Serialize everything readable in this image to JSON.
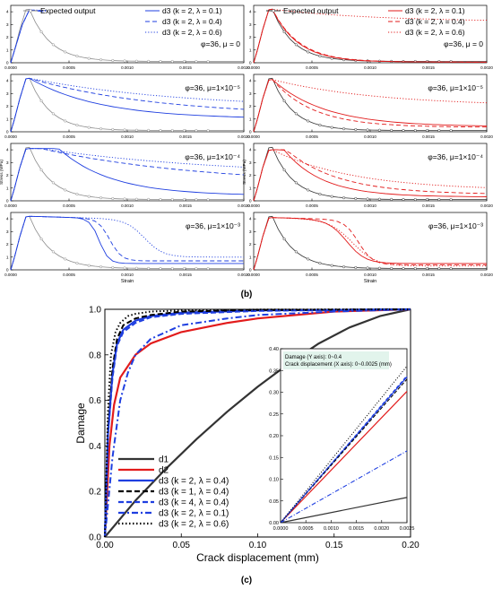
{
  "colors": {
    "blue": "#1f3fe0",
    "red": "#e21b1b",
    "gray": "#8c8c8c",
    "black": "#000000",
    "dark": "#333333",
    "inset_box": "#e2f4ec"
  },
  "captions": {
    "b": "(b)",
    "c": "(c)"
  },
  "chart_data": [
    {
      "type": "line",
      "panel": "b-left-1",
      "subtitle": "φ=36, μ = 0",
      "xlim": [
        0,
        0.002
      ],
      "ylim": [
        0,
        4.5
      ],
      "x_ticks": [
        "0.0000",
        "0.0005",
        "0.0010",
        "0.0015",
        "0.0020"
      ],
      "y_ticks": [
        "0",
        "1",
        "2",
        "3",
        "4"
      ],
      "legend": [
        "Expected output",
        "d3 (k = 2, λ = 0.1)",
        "d3 (k = 2, λ = 0.4)",
        "d3 (k = 2, λ = 0.6)"
      ]
    },
    {
      "type": "line",
      "panel": "b-right-1",
      "subtitle": "φ=36, μ = 0",
      "xlim": [
        0,
        0.002
      ],
      "ylim": [
        0,
        4.5
      ],
      "x_ticks": [
        "0.0000",
        "0.0005",
        "0.0010",
        "0.0015",
        "0.0020"
      ],
      "y_ticks": [
        "0",
        "1",
        "2",
        "3",
        "4"
      ],
      "legend": [
        "Expected output",
        "d3 (k = 2, λ = 0.1)",
        "d3 (k = 2, λ = 0.4)",
        "d3 (k = 2, λ = 0.6)"
      ]
    },
    {
      "type": "line",
      "panel": "b-left-2",
      "subtitle": "φ=36, μ=1×10⁻⁵",
      "ylabel": "",
      "xlim": [
        0,
        0.002
      ],
      "ylim": [
        0,
        4.5
      ],
      "x_ticks": [
        "0.0000",
        "0.0005",
        "0.0010",
        "0.0015",
        "0.0020"
      ],
      "y_ticks": [
        "0",
        "1",
        "2",
        "3",
        "4"
      ]
    },
    {
      "type": "line",
      "panel": "b-right-2",
      "subtitle": "φ=36, μ=1×10⁻⁵",
      "xlim": [
        0,
        0.002
      ],
      "ylim": [
        0,
        4.5
      ],
      "x_ticks": [
        "0.0000",
        "0.0005",
        "0.0010",
        "0.0015",
        "0.0020"
      ],
      "y_ticks": [
        "0",
        "1",
        "2",
        "3",
        "4"
      ]
    },
    {
      "type": "line",
      "panel": "b-left-3",
      "subtitle": "φ=36, μ=1×10⁻⁴",
      "ylabel": "Stress (MPa)",
      "xlim": [
        0,
        0.002
      ],
      "ylim": [
        0,
        4.5
      ],
      "x_ticks": [
        "0.0000",
        "0.0005",
        "0.0010",
        "0.0015",
        "0.0020"
      ],
      "y_ticks": [
        "0",
        "1",
        "2",
        "3",
        "4"
      ]
    },
    {
      "type": "line",
      "panel": "b-right-3",
      "subtitle": "φ=36, μ=1×10⁻⁴",
      "ylabel": "Stress (MPa)",
      "xlim": [
        0,
        0.002
      ],
      "ylim": [
        0,
        4.5
      ],
      "x_ticks": [
        "0.0000",
        "0.0005",
        "0.0010",
        "0.0015",
        "0.0020"
      ],
      "y_ticks": [
        "0",
        "1",
        "2",
        "3",
        "4"
      ]
    },
    {
      "type": "line",
      "panel": "b-left-4",
      "subtitle": "φ=36, μ=1×10⁻³",
      "xlabel": "Strain",
      "xlim": [
        0,
        0.002
      ],
      "ylim": [
        0,
        4.5
      ],
      "x_ticks": [
        "0.0000",
        "0.0005",
        "0.0010",
        "0.0015",
        "0.0020"
      ],
      "y_ticks": [
        "0",
        "1",
        "2",
        "3",
        "4"
      ]
    },
    {
      "type": "line",
      "panel": "b-right-4",
      "subtitle": "φ=36, μ=1×10⁻³",
      "xlabel": "Strain",
      "xlim": [
        0,
        0.002
      ],
      "ylim": [
        0,
        4.5
      ],
      "x_ticks": [
        "0.0000",
        "0.0005",
        "0.0010",
        "0.0015",
        "0.0020"
      ],
      "y_ticks": [
        "0",
        "1",
        "2",
        "3",
        "4"
      ]
    },
    {
      "type": "line",
      "panel": "c-main",
      "xlabel": "Crack displacement (mm)",
      "ylabel": "Damage",
      "xlim": [
        0,
        0.2
      ],
      "ylim": [
        0,
        1.0
      ],
      "x_ticks": [
        "0.00",
        "0.05",
        "0.10",
        "0.15",
        "0.20"
      ],
      "y_ticks": [
        "0.0",
        "0.2",
        "0.4",
        "0.6",
        "0.8",
        "1.0"
      ],
      "series": [
        {
          "name": "d1",
          "color": "#333333",
          "dash": "solid",
          "x": [
            0,
            0.01,
            0.02,
            0.04,
            0.06,
            0.08,
            0.1,
            0.12,
            0.14,
            0.16,
            0.18,
            0.2
          ],
          "y": [
            0,
            0.08,
            0.16,
            0.3,
            0.43,
            0.55,
            0.66,
            0.76,
            0.85,
            0.92,
            0.97,
            1.0
          ]
        },
        {
          "name": "d2",
          "color": "#e21b1b",
          "dash": "solid",
          "x": [
            0,
            0.003,
            0.006,
            0.01,
            0.02,
            0.03,
            0.05,
            0.08,
            0.1,
            0.15,
            0.2
          ],
          "y": [
            0,
            0.4,
            0.58,
            0.7,
            0.8,
            0.85,
            0.9,
            0.94,
            0.96,
            0.99,
            1.0
          ]
        },
        {
          "name": "d3 (k = 2, λ = 0.4)",
          "color": "#1f3fe0",
          "dash": "solid",
          "x": [
            0,
            0.002,
            0.005,
            0.008,
            0.012,
            0.02,
            0.03,
            0.05,
            0.1,
            0.2
          ],
          "y": [
            0,
            0.45,
            0.72,
            0.85,
            0.91,
            0.95,
            0.97,
            0.985,
            0.995,
            1.0
          ]
        },
        {
          "name": "d3 (k = 1, λ = 0.4)",
          "color": "#000000",
          "dash": "dash",
          "x": [
            0,
            0.002,
            0.005,
            0.008,
            0.012,
            0.02,
            0.03,
            0.05,
            0.1,
            0.2
          ],
          "y": [
            0,
            0.46,
            0.74,
            0.87,
            0.93,
            0.96,
            0.975,
            0.99,
            0.997,
            1.0
          ]
        },
        {
          "name": "d3 (k = 4, λ = 0.4)",
          "color": "#1f3fe0",
          "dash": "dash",
          "x": [
            0,
            0.002,
            0.005,
            0.008,
            0.012,
            0.02,
            0.03,
            0.05,
            0.1,
            0.2
          ],
          "y": [
            0,
            0.44,
            0.7,
            0.84,
            0.9,
            0.94,
            0.965,
            0.98,
            0.993,
            1.0
          ]
        },
        {
          "name": "d3 (k = 2, λ = 0.1)",
          "color": "#1f3fe0",
          "dash": "dashdot",
          "x": [
            0,
            0.005,
            0.01,
            0.015,
            0.02,
            0.03,
            0.05,
            0.08,
            0.1,
            0.15,
            0.2
          ],
          "y": [
            0,
            0.35,
            0.6,
            0.72,
            0.8,
            0.87,
            0.93,
            0.96,
            0.975,
            0.99,
            1.0
          ]
        },
        {
          "name": "d3 (k = 2, λ = 0.6)",
          "color": "#000000",
          "dash": "dot",
          "x": [
            0,
            0.002,
            0.004,
            0.007,
            0.01,
            0.015,
            0.02,
            0.03,
            0.05,
            0.1,
            0.2
          ],
          "y": [
            0,
            0.55,
            0.8,
            0.9,
            0.94,
            0.97,
            0.98,
            0.99,
            0.995,
            0.999,
            1.0
          ]
        }
      ]
    },
    {
      "type": "line",
      "panel": "c-inset",
      "annotation": [
        "Damage (Y axis): 0~0.4",
        "Crack displacement (X axis): 0~0.0025 (mm)"
      ],
      "xlim": [
        0,
        0.0025
      ],
      "ylim": [
        0,
        0.4
      ],
      "x_ticks": [
        "0.0000",
        "0.0005",
        "0.0010",
        "0.0015",
        "0.0020",
        "0.0025"
      ],
      "y_ticks": [
        "0.00",
        "0.05",
        "0.10",
        "0.15",
        "0.20",
        "0.25",
        "0.30",
        "0.35",
        "0.40"
      ],
      "series": [
        {
          "name": "d1",
          "color": "#333333",
          "dash": "solid",
          "x": [
            0,
            0.0025
          ],
          "y": [
            0,
            0.058
          ]
        },
        {
          "name": "d2",
          "color": "#e21b1b",
          "dash": "solid",
          "x": [
            0,
            0.0025
          ],
          "y": [
            0,
            0.302
          ]
        },
        {
          "name": "d3 (k = 2, λ = 0.4)",
          "color": "#1f3fe0",
          "dash": "solid",
          "x": [
            0,
            0.0025
          ],
          "y": [
            0,
            0.335
          ]
        },
        {
          "name": "d3 (k = 1, λ = 0.4)",
          "color": "#000000",
          "dash": "dash",
          "x": [
            0,
            0.0025
          ],
          "y": [
            0,
            0.33
          ]
        },
        {
          "name": "d3 (k = 4, λ = 0.4)",
          "color": "#1f3fe0",
          "dash": "dash",
          "x": [
            0,
            0.0025
          ],
          "y": [
            0,
            0.338
          ]
        },
        {
          "name": "d3 (k = 2, λ = 0.1)",
          "color": "#1f3fe0",
          "dash": "dashdot",
          "x": [
            0,
            0.0025
          ],
          "y": [
            0,
            0.165
          ]
        },
        {
          "name": "d3 (k = 2, λ = 0.6)",
          "color": "#000000",
          "dash": "dot",
          "x": [
            0,
            0.0025
          ],
          "y": [
            0,
            0.36
          ]
        }
      ]
    }
  ],
  "legends": {
    "b_left": [
      {
        "label": "Expected output",
        "color": "#8c8c8c",
        "dash": "solid",
        "marker": "circle"
      },
      {
        "label": "d3 (k = 2, λ = 0.1)",
        "color": "#1f3fe0",
        "dash": "solid"
      },
      {
        "label": "d3 (k = 2, λ = 0.4)",
        "color": "#1f3fe0",
        "dash": "dash"
      },
      {
        "label": "d3 (k = 2, λ = 0.6)",
        "color": "#1f3fe0",
        "dash": "dot"
      }
    ],
    "b_right": [
      {
        "label": "Expected output",
        "color": "#333333",
        "dash": "solid",
        "marker": "circle"
      },
      {
        "label": "d3 (k = 2, λ = 0.1)",
        "color": "#e21b1b",
        "dash": "solid"
      },
      {
        "label": "d3 (k = 2, λ = 0.4)",
        "color": "#e21b1b",
        "dash": "dash"
      },
      {
        "label": "d3 (k = 2, λ = 0.6)",
        "color": "#e21b1b",
        "dash": "dot"
      }
    ],
    "c": [
      {
        "label": "d1",
        "color": "#333333",
        "dash": "solid"
      },
      {
        "label": "d2",
        "color": "#e21b1b",
        "dash": "solid"
      },
      {
        "label": "d3 (k = 2, λ = 0.4)",
        "color": "#1f3fe0",
        "dash": "solid"
      },
      {
        "label": "d3 (k = 1, λ = 0.4)",
        "color": "#000000",
        "dash": "dash"
      },
      {
        "label": "d3 (k = 4, λ = 0.4)",
        "color": "#1f3fe0",
        "dash": "dash"
      },
      {
        "label": "d3 (k = 2, λ = 0.1)",
        "color": "#1f3fe0",
        "dash": "dashdot"
      },
      {
        "label": "d3 (k = 2, λ = 0.6)",
        "color": "#000000",
        "dash": "dot"
      }
    ]
  }
}
